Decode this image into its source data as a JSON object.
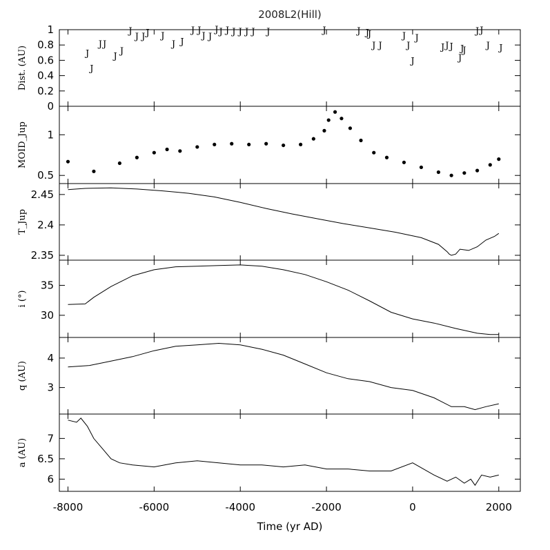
{
  "chart_data": {
    "type": "line",
    "title": "2008L2(Hill)",
    "xlabel": "Time (yr AD)",
    "xlim": [
      -8200,
      2500
    ],
    "xticks": [
      -8000,
      -6000,
      -4000,
      -2000,
      0,
      2000
    ],
    "xtick_labels": [
      "-8000",
      "-6000",
      "-4000",
      "-2000",
      "0",
      "2000"
    ],
    "panels": [
      {
        "id": "dist",
        "type": "scatter",
        "marker": "J",
        "ylabel": "Dist. (AU)",
        "ylim": [
          0,
          1.0
        ],
        "yticks": [
          0,
          0.2,
          0.4,
          0.6,
          0.8,
          1
        ],
        "ytick_labels": [
          "0",
          "0.2",
          "0.4",
          "0.6",
          "0.8",
          "1"
        ],
        "x": [
          -7550,
          -7450,
          -7250,
          -7150,
          -6900,
          -6750,
          -6550,
          -6400,
          -6250,
          -6150,
          -5800,
          -5550,
          -5350,
          -5100,
          -4950,
          -4850,
          -4700,
          -4550,
          -4450,
          -4300,
          -4150,
          -4000,
          -3850,
          -3700,
          -3350,
          -2050,
          -1250,
          -1050,
          -1000,
          -900,
          -750,
          -200,
          -100,
          0,
          100,
          700,
          800,
          900,
          1100,
          1150,
          1200,
          1500,
          1600,
          1750,
          2050
        ],
        "y": [
          0.7,
          0.5,
          0.82,
          0.82,
          0.66,
          0.73,
          0.99,
          0.92,
          0.92,
          0.97,
          0.93,
          0.82,
          0.85,
          1.0,
          1.0,
          0.93,
          0.92,
          1.01,
          0.98,
          1.0,
          0.98,
          0.98,
          0.98,
          0.98,
          0.98,
          1.0,
          0.99,
          0.97,
          0.95,
          0.8,
          0.8,
          0.93,
          0.8,
          0.6,
          0.9,
          0.78,
          0.8,
          0.79,
          0.64,
          0.76,
          0.74,
          0.99,
          1.0,
          0.8,
          0.77
        ]
      },
      {
        "id": "moid",
        "type": "scatter",
        "marker": "dot",
        "ylabel": "MOID_Jup",
        "ylim": [
          0.4,
          1.35
        ],
        "yticks": [
          0.5,
          1
        ],
        "ytick_labels": [
          "0.5",
          "1"
        ],
        "x": [
          -8000,
          -7400,
          -6800,
          -6400,
          -6000,
          -5700,
          -5400,
          -5000,
          -4600,
          -4200,
          -3800,
          -3400,
          -3000,
          -2600,
          -2300,
          -2050,
          -1950,
          -1800,
          -1650,
          -1450,
          -1200,
          -900,
          -600,
          -200,
          200,
          600,
          900,
          1200,
          1500,
          1800,
          2000
        ],
        "y": [
          0.67,
          0.55,
          0.65,
          0.72,
          0.78,
          0.82,
          0.8,
          0.85,
          0.88,
          0.89,
          0.88,
          0.89,
          0.87,
          0.88,
          0.95,
          1.05,
          1.18,
          1.28,
          1.2,
          1.08,
          0.93,
          0.78,
          0.72,
          0.66,
          0.6,
          0.54,
          0.5,
          0.53,
          0.56,
          0.63,
          0.7
        ]
      },
      {
        "id": "tjup",
        "type": "line",
        "ylabel": "T_Jup",
        "ylim": [
          2.342,
          2.468
        ],
        "yticks": [
          2.35,
          2.4,
          2.45
        ],
        "ytick_labels": [
          "2.35",
          "2.4",
          "2.45"
        ],
        "x": [
          -8000,
          -7600,
          -7000,
          -6400,
          -5800,
          -5200,
          -4600,
          -4000,
          -3400,
          -2800,
          -2200,
          -1600,
          -1000,
          -400,
          200,
          600,
          800,
          850,
          900,
          1000,
          1100,
          1300,
          1500,
          1700,
          1900,
          2000
        ],
        "y": [
          2.458,
          2.46,
          2.461,
          2.459,
          2.456,
          2.452,
          2.446,
          2.437,
          2.427,
          2.418,
          2.41,
          2.402,
          2.395,
          2.388,
          2.379,
          2.368,
          2.356,
          2.352,
          2.35,
          2.352,
          2.36,
          2.358,
          2.364,
          2.375,
          2.381,
          2.386
        ]
      },
      {
        "id": "incl",
        "type": "line",
        "ylabel": "i (°)",
        "ylim": [
          26.3,
          39.2
        ],
        "yticks": [
          30,
          35
        ],
        "ytick_labels": [
          "30",
          "35"
        ],
        "x": [
          -8000,
          -7600,
          -7400,
          -7000,
          -6500,
          -6000,
          -5500,
          -5000,
          -4500,
          -4000,
          -3500,
          -3000,
          -2500,
          -2000,
          -1500,
          -1000,
          -500,
          0,
          500,
          1000,
          1500,
          1800,
          2000
        ],
        "y": [
          31.8,
          31.9,
          33.0,
          34.8,
          36.6,
          37.6,
          38.1,
          38.2,
          38.3,
          38.4,
          38.2,
          37.6,
          36.8,
          35.6,
          34.2,
          32.4,
          30.5,
          29.4,
          28.7,
          27.8,
          27.0,
          26.8,
          26.8
        ]
      },
      {
        "id": "q",
        "type": "line",
        "ylabel": "q (AU)",
        "ylim": [
          2.1,
          4.7
        ],
        "yticks": [
          3,
          4
        ],
        "ytick_labels": [
          "3",
          "4"
        ],
        "x": [
          -8000,
          -7500,
          -7000,
          -6500,
          -6000,
          -5500,
          -5000,
          -4500,
          -4000,
          -3500,
          -3000,
          -2500,
          -2000,
          -1500,
          -1000,
          -500,
          0,
          500,
          900,
          1200,
          1450,
          1700,
          2000
        ],
        "y": [
          3.7,
          3.75,
          3.9,
          4.05,
          4.25,
          4.4,
          4.45,
          4.5,
          4.45,
          4.3,
          4.1,
          3.8,
          3.5,
          3.3,
          3.2,
          3.0,
          2.9,
          2.65,
          2.35,
          2.35,
          2.25,
          2.35,
          2.45
        ]
      },
      {
        "id": "a",
        "type": "line",
        "ylabel": "a (AU)",
        "ylim": [
          5.7,
          7.6
        ],
        "yticks": [
          6,
          6.5,
          7
        ],
        "ytick_labels": [
          "6",
          "6.5",
          "7"
        ],
        "x": [
          -8000,
          -7800,
          -7700,
          -7550,
          -7400,
          -7200,
          -7000,
          -6800,
          -6500,
          -6000,
          -5500,
          -5000,
          -4500,
          -4000,
          -3500,
          -3000,
          -2500,
          -2000,
          -1500,
          -1000,
          -500,
          0,
          500,
          800,
          1000,
          1200,
          1350,
          1450,
          1600,
          1800,
          2000
        ],
        "y": [
          7.45,
          7.4,
          7.5,
          7.3,
          7.0,
          6.75,
          6.5,
          6.4,
          6.35,
          6.3,
          6.4,
          6.45,
          6.4,
          6.35,
          6.35,
          6.3,
          6.35,
          6.25,
          6.25,
          6.2,
          6.2,
          6.4,
          6.1,
          5.95,
          6.05,
          5.9,
          6.0,
          5.85,
          6.1,
          6.05,
          6.1
        ]
      }
    ]
  }
}
